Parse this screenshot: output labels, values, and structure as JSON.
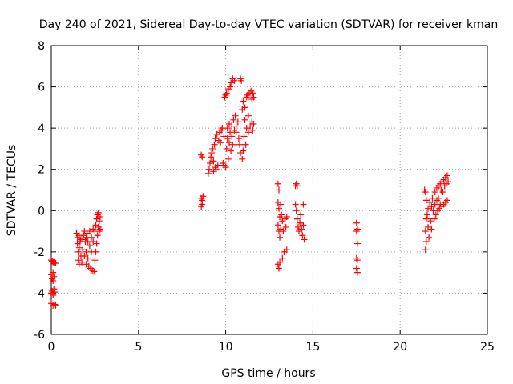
{
  "chart_data": {
    "type": "scatter",
    "title": "Day 240 of 2021, Sidereal Day-to-day VTEC variation (SDTVAR) for receiver kman",
    "xlabel": "GPS time / hours",
    "ylabel": "SDTVAR / TECUs",
    "xlim": [
      0,
      25
    ],
    "ylim": [
      -6,
      8
    ],
    "xticks": [
      "0",
      "5",
      "10",
      "15",
      "20",
      "25"
    ],
    "yticks": [
      "-6",
      "-4",
      "-2",
      "0",
      "2",
      "4",
      "6",
      "8"
    ],
    "grid": true,
    "legend": "none",
    "marker": "plus",
    "color": "#ff0000",
    "series": [
      {
        "points": [
          [
            0.0,
            -2.4
          ],
          [
            0.05,
            -2.45
          ],
          [
            0.1,
            -2.5
          ],
          [
            0.15,
            -2.5
          ],
          [
            0.2,
            -2.55
          ],
          [
            0.25,
            -2.55
          ],
          [
            0.0,
            -3.1
          ],
          [
            0.05,
            -3.3
          ],
          [
            0.1,
            -3.4
          ],
          [
            0.15,
            -3.2
          ],
          [
            0.1,
            -3.0
          ],
          [
            0.0,
            -4.0
          ],
          [
            0.05,
            -3.9
          ],
          [
            0.1,
            -4.1
          ],
          [
            0.15,
            -3.8
          ],
          [
            0.2,
            -3.95
          ],
          [
            0.0,
            -4.5
          ],
          [
            0.1,
            -4.6
          ],
          [
            0.2,
            -4.55
          ],
          [
            0.25,
            -4.6
          ],
          [
            1.45,
            -1.1
          ],
          [
            1.5,
            -1.3
          ],
          [
            1.5,
            -1.6
          ],
          [
            1.55,
            -2.0
          ],
          [
            1.55,
            -2.4
          ],
          [
            1.6,
            -2.6
          ],
          [
            1.6,
            -1.8
          ],
          [
            1.65,
            -1.5
          ],
          [
            1.7,
            -2.2
          ],
          [
            1.75,
            -2.5
          ],
          [
            1.8,
            -1.4
          ],
          [
            1.85,
            -1.2
          ],
          [
            1.9,
            -1.0
          ],
          [
            1.95,
            -1.5
          ],
          [
            2.0,
            -2.0
          ],
          [
            2.0,
            -2.6
          ],
          [
            2.05,
            -1.1
          ],
          [
            2.1,
            -1.5
          ],
          [
            2.1,
            -2.3
          ],
          [
            2.15,
            -2.7
          ],
          [
            2.2,
            -1.0
          ],
          [
            2.2,
            -1.7
          ],
          [
            2.25,
            -2.8
          ],
          [
            2.3,
            -1.3
          ],
          [
            2.3,
            -2.0
          ],
          [
            2.35,
            -2.9
          ],
          [
            2.4,
            -0.9
          ],
          [
            2.4,
            -1.5
          ],
          [
            2.45,
            -2.95
          ],
          [
            2.5,
            -2.4
          ],
          [
            2.5,
            -1.0
          ],
          [
            2.55,
            -2.0
          ],
          [
            2.55,
            -0.7
          ],
          [
            2.6,
            -1.6
          ],
          [
            2.6,
            -0.4
          ],
          [
            2.65,
            -1.2
          ],
          [
            2.65,
            -0.2
          ],
          [
            2.7,
            -0.8
          ],
          [
            2.7,
            -0.1
          ],
          [
            2.75,
            -0.5
          ],
          [
            2.75,
            -1.0
          ],
          [
            2.8,
            -0.3
          ],
          [
            2.8,
            -0.9
          ],
          [
            1.6,
            -1.2
          ],
          [
            1.7,
            -1.4
          ],
          [
            1.8,
            -1.9
          ],
          [
            1.9,
            -2.2
          ],
          [
            2.0,
            -1.3
          ],
          [
            8.6,
            2.7
          ],
          [
            8.65,
            2.6
          ],
          [
            8.6,
            0.6
          ],
          [
            8.65,
            0.3
          ],
          [
            8.6,
            0.2
          ],
          [
            8.7,
            0.7
          ],
          [
            8.65,
            0.5
          ],
          [
            9.0,
            1.8
          ],
          [
            9.05,
            2.0
          ],
          [
            9.1,
            2.3
          ],
          [
            9.15,
            2.6
          ],
          [
            9.2,
            2.8
          ],
          [
            9.25,
            3.0
          ],
          [
            9.3,
            2.4
          ],
          [
            9.3,
            1.9
          ],
          [
            9.35,
            3.2
          ],
          [
            9.4,
            2.1
          ],
          [
            9.4,
            3.5
          ],
          [
            9.45,
            2.0
          ],
          [
            9.5,
            3.7
          ],
          [
            9.55,
            2.2
          ],
          [
            9.6,
            3.4
          ],
          [
            9.65,
            3.8
          ],
          [
            9.7,
            3.3
          ],
          [
            9.75,
            3.9
          ],
          [
            9.8,
            4.0
          ],
          [
            9.85,
            2.3
          ],
          [
            9.9,
            2.2
          ],
          [
            9.9,
            3.6
          ],
          [
            9.95,
            5.5
          ],
          [
            10.0,
            5.6
          ],
          [
            10.0,
            2.1
          ],
          [
            10.05,
            3.0
          ],
          [
            10.05,
            5.7
          ],
          [
            10.1,
            3.5
          ],
          [
            10.1,
            4.0
          ],
          [
            10.15,
            2.5
          ],
          [
            10.15,
            5.9
          ],
          [
            10.2,
            3.3
          ],
          [
            10.2,
            4.2
          ],
          [
            10.25,
            6.0
          ],
          [
            10.25,
            3.8
          ],
          [
            10.3,
            2.9
          ],
          [
            10.3,
            6.2
          ],
          [
            10.35,
            3.6
          ],
          [
            10.35,
            4.1
          ],
          [
            10.4,
            6.4
          ],
          [
            10.4,
            3.2
          ],
          [
            10.45,
            4.4
          ],
          [
            10.5,
            3.9
          ],
          [
            10.5,
            6.3
          ],
          [
            10.55,
            4.6
          ],
          [
            10.6,
            3.8
          ],
          [
            10.6,
            4.1
          ],
          [
            10.7,
            4.3
          ],
          [
            10.75,
            3.5
          ],
          [
            10.8,
            3.2
          ],
          [
            10.85,
            2.8
          ],
          [
            10.85,
            6.4
          ],
          [
            10.9,
            6.3
          ],
          [
            10.95,
            2.5
          ],
          [
            10.95,
            4.9
          ],
          [
            11.0,
            5.3
          ],
          [
            11.0,
            2.9
          ],
          [
            11.05,
            3.6
          ],
          [
            11.1,
            5.0
          ],
          [
            11.1,
            4.4
          ],
          [
            11.15,
            3.2
          ],
          [
            11.2,
            5.5
          ],
          [
            11.2,
            4.0
          ],
          [
            11.25,
            5.6
          ],
          [
            11.3,
            3.8
          ],
          [
            11.3,
            4.6
          ],
          [
            11.35,
            5.7
          ],
          [
            11.4,
            4.1
          ],
          [
            11.45,
            5.8
          ],
          [
            11.5,
            4.3
          ],
          [
            11.5,
            5.4
          ],
          [
            11.55,
            3.9
          ],
          [
            11.55,
            5.7
          ],
          [
            11.6,
            4.2
          ],
          [
            11.6,
            5.5
          ],
          [
            13.0,
            1.3
          ],
          [
            13.05,
            1.0
          ],
          [
            13.0,
            0.4
          ],
          [
            13.05,
            0.1
          ],
          [
            13.1,
            -0.3
          ],
          [
            13.0,
            -0.7
          ],
          [
            13.05,
            -1.0
          ],
          [
            13.1,
            -1.3
          ],
          [
            13.15,
            -0.9
          ],
          [
            13.0,
            -2.6
          ],
          [
            13.05,
            -2.8
          ],
          [
            13.1,
            -2.5
          ],
          [
            13.15,
            0.3
          ],
          [
            13.2,
            -0.2
          ],
          [
            13.25,
            -0.5
          ],
          [
            13.25,
            -2.3
          ],
          [
            13.3,
            -1.0
          ],
          [
            13.35,
            -2.0
          ],
          [
            13.4,
            -0.4
          ],
          [
            13.45,
            -0.8
          ],
          [
            13.5,
            -1.9
          ],
          [
            13.5,
            -0.3
          ],
          [
            14.0,
            1.2
          ],
          [
            14.05,
            1.3
          ],
          [
            14.1,
            1.2
          ],
          [
            14.0,
            0.3
          ],
          [
            14.05,
            0.0
          ],
          [
            14.1,
            -0.4
          ],
          [
            14.15,
            -0.8
          ],
          [
            14.2,
            -1.0
          ],
          [
            14.25,
            -0.6
          ],
          [
            14.3,
            -0.2
          ],
          [
            14.35,
            -0.9
          ],
          [
            14.4,
            -1.2
          ],
          [
            14.45,
            -0.7
          ],
          [
            14.45,
            0.3
          ],
          [
            14.5,
            -1.4
          ],
          [
            17.5,
            -0.6
          ],
          [
            17.55,
            -0.9
          ],
          [
            17.5,
            -1.0
          ],
          [
            17.55,
            -1.6
          ],
          [
            17.5,
            -2.3
          ],
          [
            17.55,
            -2.4
          ],
          [
            17.5,
            -2.8
          ],
          [
            17.55,
            -3.0
          ],
          [
            21.4,
            1.0
          ],
          [
            21.45,
            0.9
          ],
          [
            21.5,
            0.5
          ],
          [
            21.5,
            -0.4
          ],
          [
            21.45,
            -1.0
          ],
          [
            21.5,
            -1.5
          ],
          [
            21.45,
            -1.9
          ],
          [
            21.55,
            -0.2
          ],
          [
            21.6,
            0.1
          ],
          [
            21.6,
            -0.8
          ],
          [
            21.65,
            -1.3
          ],
          [
            21.7,
            0.4
          ],
          [
            21.75,
            -0.5
          ],
          [
            21.8,
            0.2
          ],
          [
            21.8,
            -0.9
          ],
          [
            21.85,
            0.6
          ],
          [
            21.9,
            0.0
          ],
          [
            21.95,
            -0.4
          ],
          [
            22.0,
            0.9
          ],
          [
            22.0,
            0.3
          ],
          [
            22.05,
            -0.2
          ],
          [
            22.1,
            1.1
          ],
          [
            22.1,
            0.5
          ],
          [
            22.15,
            0.0
          ],
          [
            22.2,
            1.2
          ],
          [
            22.2,
            0.6
          ],
          [
            22.25,
            0.1
          ],
          [
            22.3,
            1.3
          ],
          [
            22.3,
            0.3
          ],
          [
            22.35,
            1.0
          ],
          [
            22.4,
            1.4
          ],
          [
            22.4,
            0.2
          ],
          [
            22.45,
            0.9
          ],
          [
            22.5,
            1.5
          ],
          [
            22.5,
            0.3
          ],
          [
            22.55,
            1.2
          ],
          [
            22.6,
            1.6
          ],
          [
            22.6,
            0.4
          ],
          [
            22.65,
            1.3
          ],
          [
            22.7,
            1.7
          ],
          [
            22.7,
            0.5
          ],
          [
            22.75,
            1.4
          ]
        ]
      }
    ]
  }
}
